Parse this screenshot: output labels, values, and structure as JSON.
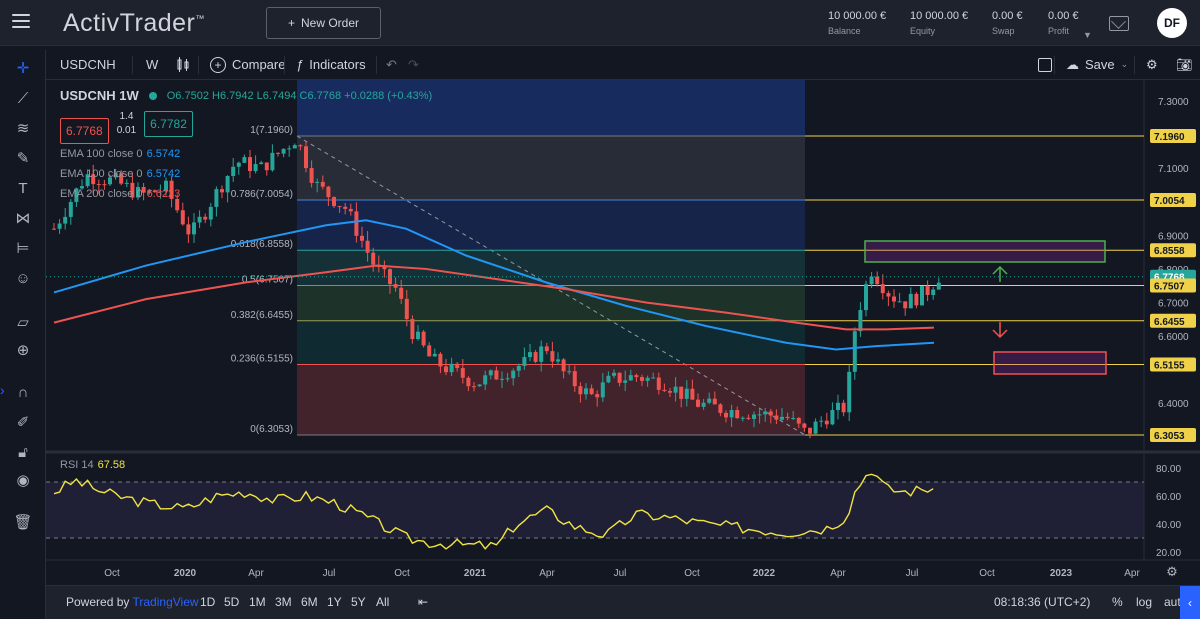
{
  "header": {
    "logo": "ActivTrader",
    "logo_mark": "™",
    "new_order_label": "New Order",
    "stats": [
      {
        "value": "10 000.00 €",
        "label": "Balance"
      },
      {
        "value": "10 000.00 €",
        "label": "Equity"
      },
      {
        "value": "0.00 €",
        "label": "Swap"
      },
      {
        "value": "0.00 €",
        "label": "Profit"
      }
    ],
    "avatar": "DF"
  },
  "toolbar": {
    "symbol": "USDCNH",
    "interval": "W",
    "compare_label": "Compare",
    "indicators_label": "Indicators",
    "save_label": "Save"
  },
  "legend": {
    "symbol": "USDCNH",
    "interval": "1W",
    "open": "O6.7502",
    "high": "H6.7942",
    "low": "L6.7494",
    "close": "C6.7768",
    "change": "+0.0288 (+0.43%)",
    "sell_price": "6.7768",
    "buy_price": "6.7782",
    "spread_top": "1.4",
    "spread_bottom": "0.01",
    "ema1_label": "EMA 100 close 0",
    "ema1_value": "6.5742",
    "ema2_label": "EMA 100 close 0",
    "ema2_value": "6.5742",
    "ema3_label": "EMA 200 close 0",
    "ema3_value": "6.6223",
    "rsi_label": "RSI 14",
    "rsi_value": "67.58"
  },
  "chart_data": {
    "type": "candlestick",
    "x_labels": [
      "Oct",
      "2020",
      "Apr",
      "Jul",
      "Oct",
      "2021",
      "Apr",
      "Jul",
      "Oct",
      "2022",
      "Apr",
      "Jul",
      "Oct",
      "2023",
      "Apr"
    ],
    "y_ticks": [
      "7.3000",
      "7.1000",
      "6.9000",
      "6.8000",
      "6.7000",
      "6.6000",
      "6.4000"
    ],
    "price_labels": [
      {
        "text": "7.1960",
        "kind": "fib"
      },
      {
        "text": "7.0054",
        "kind": "fib"
      },
      {
        "text": "6.8558",
        "kind": "fib"
      },
      {
        "text": "6.7768",
        "kind": "last"
      },
      {
        "text": "6.7507",
        "kind": "fib"
      },
      {
        "text": "6.6455",
        "kind": "fib"
      },
      {
        "text": "6.5155",
        "kind": "fib"
      },
      {
        "text": "6.3053",
        "kind": "fib"
      }
    ],
    "fib_levels": [
      {
        "ratio": "1",
        "price": 7.196,
        "label": "1(7.1960)"
      },
      {
        "ratio": "0.786",
        "price": 7.0054,
        "label": "0.786(7.0054)"
      },
      {
        "ratio": "0.618",
        "price": 6.8558,
        "label": "0.618(6.8558)"
      },
      {
        "ratio": "0.5",
        "price": 6.7507,
        "label": "0.5(6.7507)"
      },
      {
        "ratio": "0.382",
        "price": 6.6455,
        "label": "0.382(6.6455)"
      },
      {
        "ratio": "0.236",
        "price": 6.5155,
        "label": "0.236(6.5155)"
      },
      {
        "ratio": "0",
        "price": 6.3053,
        "label": "0(6.3053)"
      }
    ],
    "rsi_ticks": [
      "80.00",
      "60.00",
      "40.00",
      "20.00"
    ]
  },
  "bottombar": {
    "powered_by": "Powered by",
    "tradingview": "TradingView",
    "ranges": [
      "1D",
      "5D",
      "1M",
      "3M",
      "6M",
      "1Y",
      "5Y",
      "All"
    ],
    "time": "08:18:36 (UTC+2)",
    "pct": "%",
    "log": "log",
    "auto": "auto"
  }
}
